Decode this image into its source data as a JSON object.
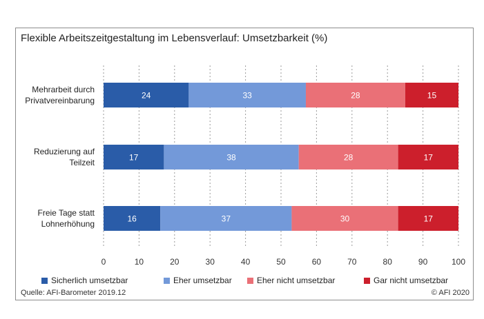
{
  "chart_data": {
    "type": "bar",
    "orientation": "horizontal",
    "stacked": true,
    "title": "Flexible Arbeitszeitgestaltung im Lebensverlauf: Umsetzbarkeit (%)",
    "categories": [
      [
        "Mehrarbeit durch",
        "Privatvereinbarung"
      ],
      [
        "Reduzierung auf",
        "Teilzeit"
      ],
      [
        "Freie Tage statt",
        "Lohnerhöhung"
      ]
    ],
    "series": [
      {
        "name": "Sicherlich umsetzbar",
        "color": "#2a5ca8",
        "values": [
          24,
          17,
          16
        ]
      },
      {
        "name": "Eher umsetzbar",
        "color": "#7399d9",
        "values": [
          33,
          38,
          37
        ]
      },
      {
        "name": "Eher nicht umsetzbar",
        "color": "#ea7077",
        "values": [
          28,
          28,
          30
        ]
      },
      {
        "name": "Gar nicht umsetzbar",
        "color": "#cc1f2c",
        "values": [
          15,
          17,
          17
        ]
      }
    ],
    "xlim": [
      0,
      100
    ],
    "xticks": [
      0,
      10,
      20,
      30,
      40,
      50,
      60,
      70,
      80,
      90,
      100
    ],
    "grid": "vertical dashed",
    "legend": "bottom"
  },
  "source": "Quelle: AFI-Barometer 2019.12",
  "copyright": "© AFI 2020"
}
